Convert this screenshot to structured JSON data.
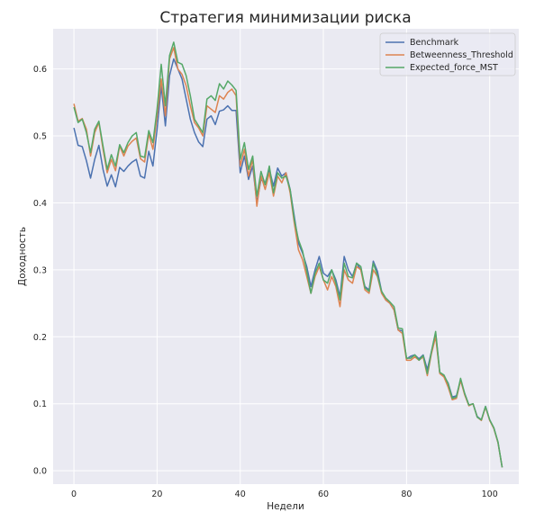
{
  "chart_data": {
    "type": "line",
    "title": "Стратегия минимизации риска",
    "xlabel": "Недели",
    "ylabel": "Доходность",
    "xlim": [
      -5,
      107
    ],
    "ylim": [
      -0.02,
      0.66
    ],
    "xticks": [
      0,
      20,
      40,
      60,
      80,
      100
    ],
    "yticks": [
      0.0,
      0.1,
      0.2,
      0.3,
      0.4,
      0.5,
      0.6
    ],
    "grid": true,
    "legend_position": "top-right",
    "x": [
      0,
      1,
      2,
      3,
      4,
      5,
      6,
      7,
      8,
      9,
      10,
      11,
      12,
      13,
      14,
      15,
      16,
      17,
      18,
      19,
      20,
      21,
      22,
      23,
      24,
      25,
      26,
      27,
      28,
      29,
      30,
      31,
      32,
      33,
      34,
      35,
      36,
      37,
      38,
      39,
      40,
      41,
      42,
      43,
      44,
      45,
      46,
      47,
      48,
      49,
      50,
      51,
      52,
      53,
      54,
      55,
      56,
      57,
      58,
      59,
      60,
      61,
      62,
      63,
      64,
      65,
      66,
      67,
      68,
      69,
      70,
      71,
      72,
      73,
      74,
      75,
      76,
      77,
      78,
      79,
      80,
      81,
      82,
      83,
      84,
      85,
      86,
      87,
      88,
      89,
      90,
      91,
      92,
      93,
      94,
      95,
      96,
      97,
      98,
      99,
      100,
      101,
      102,
      103
    ],
    "series": [
      {
        "name": "Benchmark",
        "color": "#4c72b0",
        "values": [
          0.512,
          0.486,
          0.484,
          0.463,
          0.437,
          0.465,
          0.486,
          0.45,
          0.425,
          0.442,
          0.424,
          0.453,
          0.447,
          0.455,
          0.461,
          0.465,
          0.44,
          0.437,
          0.477,
          0.455,
          0.51,
          0.575,
          0.515,
          0.59,
          0.615,
          0.6,
          0.585,
          0.555,
          0.525,
          0.505,
          0.491,
          0.484,
          0.525,
          0.53,
          0.517,
          0.537,
          0.539,
          0.545,
          0.538,
          0.538,
          0.445,
          0.47,
          0.435,
          0.455,
          0.4,
          0.435,
          0.43,
          0.45,
          0.425,
          0.452,
          0.44,
          0.445,
          0.42,
          0.38,
          0.34,
          0.325,
          0.305,
          0.275,
          0.3,
          0.32,
          0.295,
          0.29,
          0.3,
          0.285,
          0.26,
          0.32,
          0.3,
          0.29,
          0.31,
          0.3,
          0.275,
          0.27,
          0.313,
          0.298,
          0.268,
          0.255,
          0.25,
          0.24,
          0.21,
          0.209,
          0.167,
          0.171,
          0.173,
          0.167,
          0.173,
          0.151,
          0.178,
          0.205,
          0.146,
          0.141,
          0.131,
          0.11,
          0.112,
          0.135,
          0.115,
          0.098,
          0.1,
          0.081,
          0.076,
          0.096,
          0.076,
          0.064,
          0.042,
          0.005
        ]
      },
      {
        "name": "Betweenness_Threshold",
        "color": "#dd8452",
        "values": [
          0.548,
          0.522,
          0.526,
          0.51,
          0.47,
          0.505,
          0.52,
          0.48,
          0.445,
          0.465,
          0.448,
          0.485,
          0.47,
          0.485,
          0.492,
          0.497,
          0.466,
          0.461,
          0.503,
          0.48,
          0.53,
          0.585,
          0.53,
          0.615,
          0.632,
          0.6,
          0.592,
          0.575,
          0.545,
          0.52,
          0.512,
          0.5,
          0.545,
          0.54,
          0.535,
          0.56,
          0.555,
          0.565,
          0.57,
          0.56,
          0.455,
          0.48,
          0.44,
          0.465,
          0.395,
          0.44,
          0.42,
          0.445,
          0.41,
          0.44,
          0.43,
          0.445,
          0.415,
          0.37,
          0.33,
          0.315,
          0.29,
          0.265,
          0.29,
          0.305,
          0.285,
          0.27,
          0.29,
          0.275,
          0.245,
          0.3,
          0.285,
          0.28,
          0.305,
          0.3,
          0.27,
          0.265,
          0.3,
          0.29,
          0.265,
          0.255,
          0.25,
          0.24,
          0.21,
          0.205,
          0.165,
          0.165,
          0.17,
          0.165,
          0.17,
          0.142,
          0.175,
          0.2,
          0.145,
          0.14,
          0.125,
          0.106,
          0.108,
          0.135,
          0.113,
          0.097,
          0.1,
          0.08,
          0.075,
          0.095,
          0.075,
          0.063,
          0.042,
          0.005
        ]
      },
      {
        "name": "Expected_force_MST",
        "color": "#55a868",
        "values": [
          0.543,
          0.52,
          0.525,
          0.505,
          0.475,
          0.51,
          0.522,
          0.485,
          0.45,
          0.472,
          0.455,
          0.487,
          0.475,
          0.49,
          0.5,
          0.505,
          0.47,
          0.468,
          0.508,
          0.49,
          0.54,
          0.607,
          0.545,
          0.62,
          0.64,
          0.61,
          0.607,
          0.59,
          0.56,
          0.525,
          0.515,
          0.505,
          0.555,
          0.56,
          0.553,
          0.578,
          0.57,
          0.582,
          0.576,
          0.568,
          0.465,
          0.49,
          0.45,
          0.47,
          0.41,
          0.447,
          0.427,
          0.455,
          0.415,
          0.445,
          0.437,
          0.44,
          0.42,
          0.375,
          0.345,
          0.328,
          0.298,
          0.265,
          0.295,
          0.31,
          0.285,
          0.28,
          0.3,
          0.28,
          0.255,
          0.31,
          0.29,
          0.288,
          0.31,
          0.305,
          0.273,
          0.268,
          0.31,
          0.292,
          0.268,
          0.258,
          0.252,
          0.245,
          0.213,
          0.212,
          0.168,
          0.168,
          0.173,
          0.165,
          0.172,
          0.145,
          0.178,
          0.208,
          0.147,
          0.143,
          0.13,
          0.108,
          0.11,
          0.138,
          0.115,
          0.098,
          0.1,
          0.08,
          0.076,
          0.096,
          0.076,
          0.064,
          0.043,
          0.005
        ]
      }
    ]
  }
}
